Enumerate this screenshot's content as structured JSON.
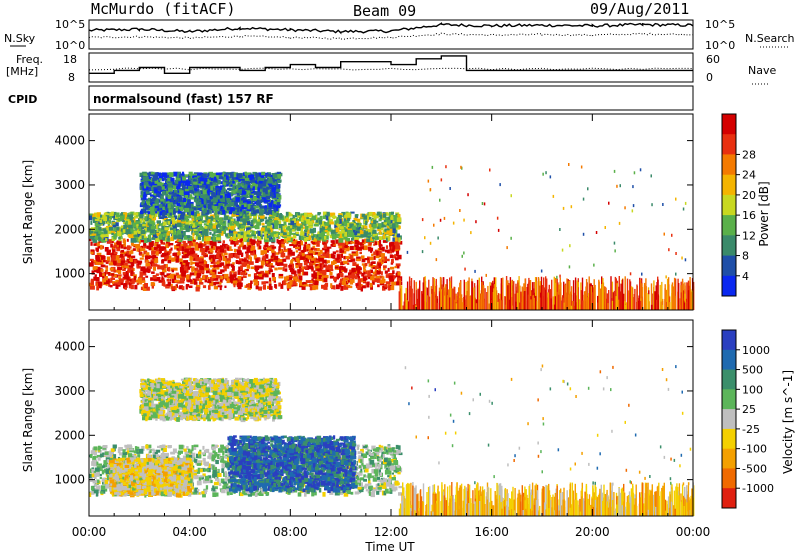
{
  "header": {
    "station": "McMurdo (fitACF)",
    "beam": "Beam 09",
    "date": "09/Aug/2011"
  },
  "noise_panel": {
    "left_label": "N.Sky",
    "right_label": "N.Search",
    "tick_top": "10^5",
    "tick_bottom": "10^0"
  },
  "freq_panel": {
    "left_label_1": "Freq.",
    "left_label_2": "[MHz]",
    "left_ticks": [
      "18",
      "8"
    ],
    "right_label": "Nave",
    "right_ticks": [
      "60",
      "0"
    ]
  },
  "cpid": {
    "label": "CPID",
    "value": "normalsound (fast) 157 RF"
  },
  "x_ticks": [
    "00:00",
    "04:00",
    "08:00",
    "12:00",
    "16:00",
    "20:00",
    "00:00"
  ],
  "x_label": "Time UT",
  "y_label": "Slant Range [km]",
  "y_ticks": [
    "1000",
    "2000",
    "3000",
    "4000"
  ],
  "power_scale": {
    "label": "Power [dB]",
    "ticks": [
      "4",
      "8",
      "12",
      "16",
      "20",
      "24",
      "28"
    ],
    "colors": [
      "#0a28f0",
      "#1f4fa8",
      "#3a8a6a",
      "#5ab04a",
      "#c8d820",
      "#f4b400",
      "#f47a00",
      "#e83010",
      "#d40000"
    ]
  },
  "velocity_scale": {
    "label": "Velocity [m s^-1]",
    "ticks": [
      "1000",
      "500",
      "100",
      "25",
      "-25",
      "-100",
      "-500",
      "-1000"
    ],
    "colors": [
      "#2a3fc0",
      "#1f6ab0",
      "#3b8f6b",
      "#5cb55a",
      "#bfbfbf",
      "#f4d000",
      "#f4a000",
      "#f06a00",
      "#e02010"
    ]
  },
  "chart_data": [
    {
      "type": "line",
      "title": "N.Sky / N.Search",
      "x": [
        "00:00",
        "02:00",
        "04:00",
        "06:00",
        "08:00",
        "10:00",
        "12:00",
        "14:00",
        "16:00",
        "18:00",
        "20:00",
        "22:00",
        "24:00"
      ],
      "series": [
        {
          "name": "N.Sky",
          "values": [
            3.2,
            3.4,
            3.0,
            3.6,
            3.3,
            3.0,
            3.1,
            4.2,
            4.0,
            4.1,
            4.0,
            4.2,
            4.1
          ]
        },
        {
          "name": "N.Search",
          "values": [
            2.0,
            2.1,
            1.9,
            2.2,
            2.0,
            1.8,
            2.0,
            2.6,
            2.4,
            2.5,
            2.4,
            2.6,
            2.5
          ]
        }
      ],
      "ylim": [
        0,
        5
      ]
    },
    {
      "type": "line",
      "title": "Freq. / Nave",
      "x": [
        "00:00",
        "01:00",
        "02:00",
        "03:00",
        "04:00",
        "06:00",
        "07:00",
        "08:00",
        "09:00",
        "10:00",
        "12:00",
        "13:00",
        "14:00",
        "15:00",
        "24:00"
      ],
      "series": [
        {
          "name": "Freq. [MHz]",
          "values": [
            11,
            12,
            13,
            11,
            13,
            12,
            13,
            14,
            13,
            15,
            14,
            16,
            17,
            12,
            12
          ]
        }
      ],
      "ylim": [
        8,
        18
      ]
    },
    {
      "type": "heatmap",
      "title": "Power [dB]",
      "xlabel": "Time UT",
      "ylabel": "Slant Range [km]",
      "xlim": [
        0,
        24
      ],
      "ylim": [
        180,
        4600
      ],
      "x_hours": [
        0,
        1,
        2,
        3,
        4,
        5,
        6,
        7,
        8,
        9,
        10,
        11,
        12,
        14,
        16,
        18,
        20,
        22,
        24
      ],
      "echo_bands": [
        {
          "t0": 0.0,
          "t1": 12.3,
          "r0": 700,
          "r1": 1800,
          "power_dB": 26
        },
        {
          "t0": 0.0,
          "t1": 12.3,
          "r0": 1800,
          "r1": 2400,
          "power_dB": 12
        },
        {
          "t0": 2.0,
          "t1": 7.5,
          "r0": 2400,
          "r1": 3300,
          "power_dB": 6
        },
        {
          "t0": 12.3,
          "t1": 24.0,
          "r0": 180,
          "r1": 800,
          "power_dB": 24
        }
      ],
      "zlim": [
        0,
        30
      ]
    },
    {
      "type": "heatmap",
      "title": "Velocity [m s^-1]",
      "xlabel": "Time UT",
      "ylabel": "Slant Range [km]",
      "xlim": [
        0,
        24
      ],
      "ylim": [
        180,
        4600
      ],
      "echo_bands": [
        {
          "t0": 0.0,
          "t1": 12.3,
          "r0": 700,
          "r1": 1800,
          "velocity": 120
        },
        {
          "t0": 0.8,
          "t1": 4.0,
          "r0": 700,
          "r1": 1500,
          "velocity": -150
        },
        {
          "t0": 5.5,
          "t1": 10.5,
          "r0": 800,
          "r1": 2000,
          "velocity": 700
        },
        {
          "t0": 2.0,
          "t1": 7.5,
          "r0": 2400,
          "r1": 3300,
          "velocity": 0
        },
        {
          "t0": 12.3,
          "t1": 24.0,
          "r0": 180,
          "r1": 800,
          "velocity": -300
        }
      ],
      "zlim": [
        -1000,
        1000
      ]
    }
  ]
}
